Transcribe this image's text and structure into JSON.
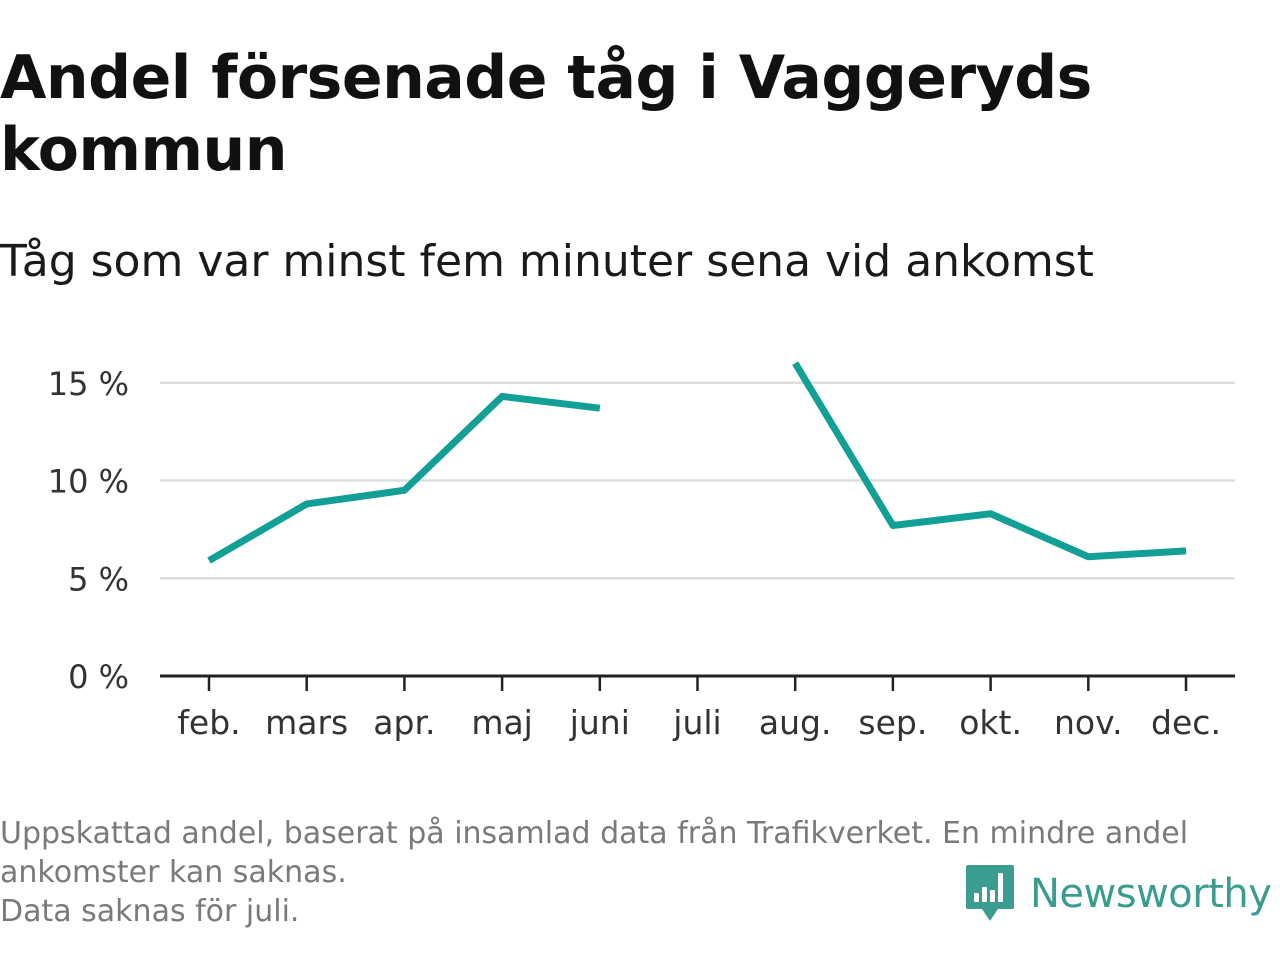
{
  "title": "Andel försenade tåg i Vaggeryds kommun",
  "subtitle": "Tåg som var minst fem minuter sena vid ankomst",
  "footnote": {
    "line1": "Uppskattad andel, baserat på insamlad data från Trafikverket. En mindre andel",
    "line2": "ankomster kan saknas.",
    "line3": "Data saknas för juli."
  },
  "brand": {
    "name": "Newsworthy",
    "icon": "newsworthy-logo-icon"
  },
  "colors": {
    "line": "#12a096",
    "grid": "#dddddd",
    "axis": "#222222",
    "brand": "#3a9d8f"
  },
  "chart_data": {
    "type": "line",
    "categories": [
      "feb.",
      "mars",
      "apr.",
      "maj",
      "juni",
      "juli",
      "aug.",
      "sep.",
      "okt.",
      "nov.",
      "dec."
    ],
    "series": [
      {
        "values": [
          5.9,
          8.8,
          9.5,
          14.3,
          13.7,
          null,
          16.0,
          7.7,
          8.3,
          6.1,
          6.4
        ]
      }
    ],
    "ylim": [
      0,
      16
    ],
    "yticks": [
      0,
      5,
      10,
      15
    ],
    "ytick_labels": [
      "0 %",
      "5 %",
      "10 %",
      "15 %"
    ],
    "grid": true,
    "legend": "none"
  }
}
